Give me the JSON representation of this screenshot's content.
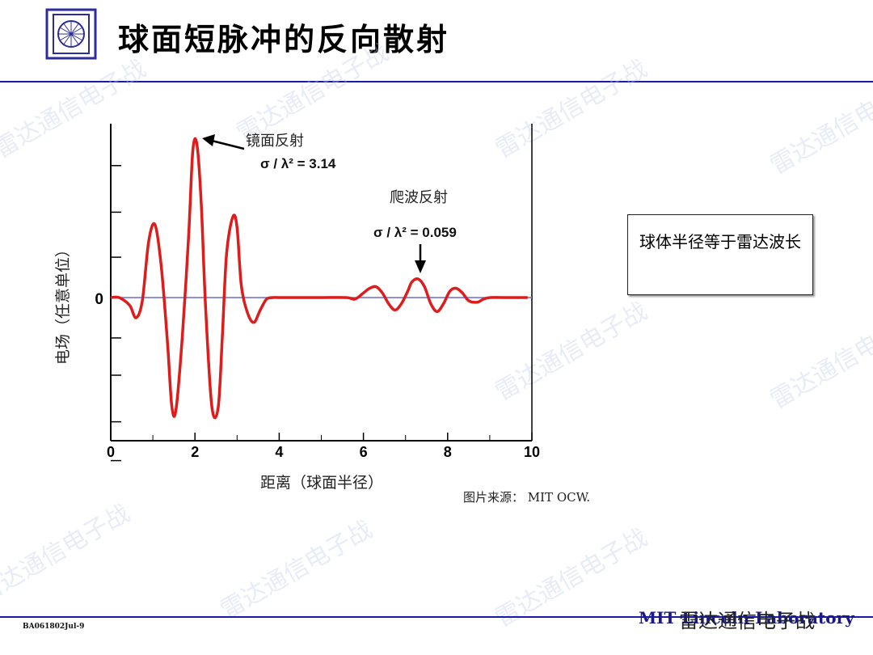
{
  "page": {
    "title": "球面短脉冲的反向散射",
    "note": "球体半径等于雷达波长",
    "source": "图片来源：  MIT OCW.",
    "footer_code": "BA061802Jul-9",
    "footer_right": "MIT Lincoln Laboratory",
    "watermark_footer": "雷达通信电子战",
    "watermark": "雷达通信电子战"
  },
  "colors": {
    "curve": "#dd1c1c",
    "rule": "#1a1aa8",
    "axis": "#000000"
  },
  "chart_data": {
    "type": "line",
    "xlabel": "距离（球面半径）",
    "ylabel": "电场（任意单位）",
    "xlim": [
      0,
      10
    ],
    "x_ticks": [
      "0",
      "2",
      "4",
      "6",
      "8",
      "10"
    ],
    "y_tick_labels": [
      "0"
    ],
    "grid": false,
    "annotations": [
      {
        "label": "镜面反射",
        "value": "σ / λ² = 3.14"
      },
      {
        "label": "爬波反射",
        "value": "σ / λ² = 0.059"
      }
    ],
    "series": [
      {
        "x": [
          0,
          0.2,
          0.45,
          0.6,
          0.75,
          0.9,
          1.05,
          1.2,
          1.35,
          1.45,
          1.55,
          1.7,
          1.85,
          1.95,
          2.05,
          2.15,
          2.25,
          2.4,
          2.55,
          2.65,
          2.75,
          2.9,
          3.0,
          3.1,
          3.25,
          3.4,
          3.55,
          3.7,
          3.85,
          4.0,
          4.3,
          5.0,
          5.6,
          5.8,
          6.0,
          6.15,
          6.3,
          6.45,
          6.6,
          6.75,
          6.9,
          7.05,
          7.15,
          7.3,
          7.45,
          7.6,
          7.75,
          7.9,
          8.05,
          8.2,
          8.35,
          8.5,
          8.7,
          8.85,
          9.0,
          9.3,
          9.6,
          9.9
        ],
        "y": [
          0,
          0,
          -0.05,
          -0.13,
          -0.02,
          0.36,
          0.47,
          0.2,
          -0.3,
          -0.7,
          -0.72,
          -0.25,
          0.4,
          0.95,
          0.98,
          0.6,
          -0.05,
          -0.7,
          -0.71,
          -0.25,
          0.28,
          0.52,
          0.45,
          0.08,
          -0.1,
          -0.16,
          -0.08,
          -0.01,
          0.0,
          0.0,
          0.0,
          0.0,
          0.0,
          -0.01,
          0.03,
          0.06,
          0.07,
          0.03,
          -0.04,
          -0.08,
          -0.04,
          0.04,
          0.1,
          0.12,
          0.07,
          -0.04,
          -0.09,
          -0.04,
          0.04,
          0.06,
          0.03,
          -0.02,
          -0.03,
          -0.01,
          0.0,
          0.0,
          0.0,
          0.0
        ]
      }
    ]
  }
}
